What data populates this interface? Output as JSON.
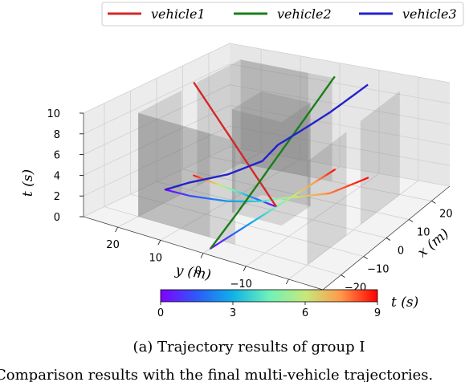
{
  "chart_data": {
    "type": "line",
    "projection": "3d",
    "caption": "(a) Trajectory results of group I",
    "footer_text": "Comparison results with the final multi-vehicle trajectories.",
    "axes": {
      "x": {
        "label": "x (m)",
        "ticks": [
          -20,
          -10,
          0,
          10,
          20
        ],
        "tick_labels": [
          "−20",
          "−10",
          "0",
          "10",
          "20"
        ],
        "range": [
          -28,
          28
        ]
      },
      "y": {
        "label": "y (m)",
        "ticks": [
          20,
          10,
          0,
          -10,
          -20
        ],
        "tick_labels": [
          "20",
          "10",
          "0",
          "−10",
          "−20"
        ],
        "range": [
          -28,
          28
        ]
      },
      "t": {
        "label": "t (s)",
        "ticks": [
          0,
          2,
          4,
          6,
          8,
          10
        ],
        "tick_labels": [
          "0",
          "2",
          "4",
          "6",
          "8",
          "10"
        ],
        "range": [
          0,
          10
        ]
      }
    },
    "grid": true,
    "legend": {
      "placement": "top-center",
      "orientation": "horizontal"
    },
    "series": [
      {
        "name": "vehicle1",
        "color": "#d62728",
        "x": [
          2,
          4,
          6,
          8
        ],
        "y": [
          0,
          8,
          16,
          24
        ],
        "t": [
          0,
          3,
          6,
          9
        ]
      },
      {
        "name": "vehicle2",
        "color": "#1a7f1a",
        "x": [
          -25,
          -14,
          -4,
          6,
          16,
          26
        ],
        "y": [
          0,
          0,
          0,
          0,
          0,
          0
        ],
        "t": [
          0,
          1.8,
          3.6,
          5.4,
          7.2,
          9
        ]
      },
      {
        "name": "vehicle3",
        "color": "#2222cc",
        "x": [
          -3,
          -3,
          -1,
          3,
          6,
          10,
          14,
          25
        ],
        "y": [
          24,
          18,
          10,
          4,
          2,
          -2,
          -6,
          -9
        ],
        "t": [
          0,
          1.3,
          2.6,
          3.9,
          5.2,
          6.5,
          7.8,
          9
        ]
      }
    ],
    "colorbar": {
      "label": "t (s)",
      "min": 0,
      "max": 9,
      "ticks": [
        0,
        3,
        6,
        9
      ],
      "tick_labels": [
        "0",
        "3",
        "6",
        "9"
      ],
      "colormap": "rainbow"
    },
    "ground_projection": "trajectories projected onto the t = 0 plane and colored by time"
  }
}
